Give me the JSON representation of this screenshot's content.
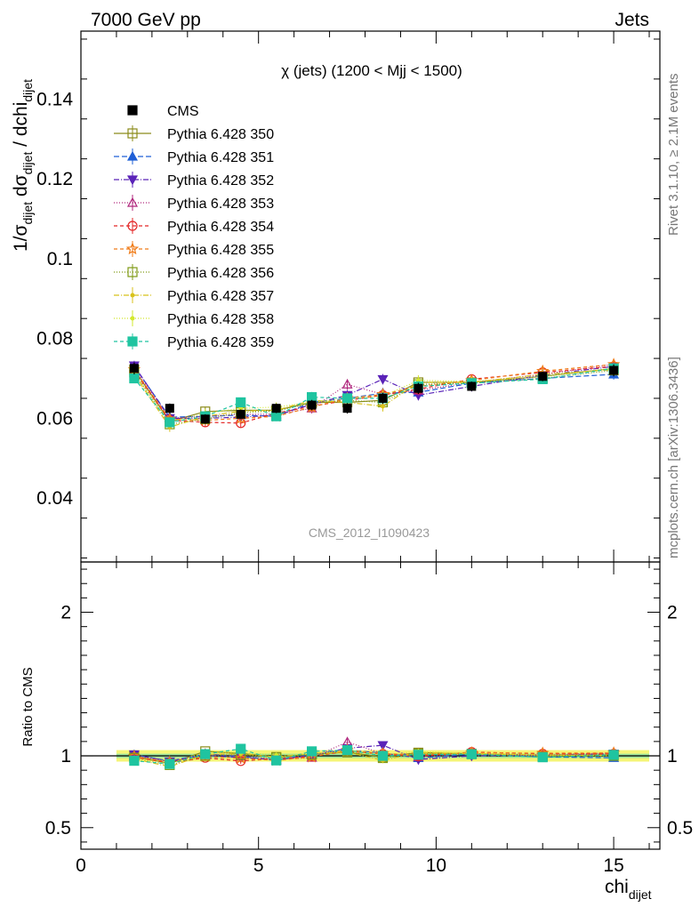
{
  "header": {
    "left": "7000 GeV pp",
    "right": "Jets"
  },
  "side": {
    "rivet": "Rivet 3.1.10, ≥ 2.1M events",
    "mcplots": "mcplots.cern.ch [arXiv:1306.3436]"
  },
  "colors": {
    "data": "#000000",
    "band_outer": "#f5f576",
    "band_inner": "#9ee69e",
    "axis": "#000000",
    "watermark": "#999999",
    "side_text": "#777777"
  },
  "chart_data": [
    {
      "type": "line",
      "panel": "main",
      "title": "χ (jets) (1200 < Mjj < 1500)",
      "watermark": "CMS_2012_I1090423",
      "ylabel": {
        "prefix": "1/σ",
        "sub1": "dijet",
        "mid": " dσ",
        "sub2": "dijet",
        "suffix": " / dchi",
        "sub3": "dijet"
      },
      "xlim": [
        0,
        16.3
      ],
      "ylim": [
        0.024,
        0.157
      ],
      "yticks": [
        "0.04",
        "0.06",
        "0.08",
        "0.1",
        "0.12",
        "0.14"
      ],
      "ytick_values": [
        0.04,
        0.06,
        0.08,
        0.1,
        0.12,
        0.14
      ],
      "x": [
        1.5,
        2.5,
        3.5,
        4.5,
        5.5,
        6.5,
        7.5,
        8.5,
        9.5,
        11,
        13,
        15
      ],
      "data": {
        "name": "CMS",
        "values": [
          0.0725,
          0.0625,
          0.0598,
          0.061,
          0.0625,
          0.0633,
          0.0625,
          0.065,
          0.0675,
          0.068,
          0.0705,
          0.072
        ],
        "errors": [
          0.0015,
          0.0012,
          0.0012,
          0.0012,
          0.0012,
          0.0013,
          0.0013,
          0.0014,
          0.0014,
          0.0012,
          0.0012,
          0.0015
        ]
      },
      "series": [
        {
          "name": "Pythia 6.428 350",
          "color": "#8b8b1a",
          "dash": "",
          "marker": "square-open",
          "values": [
            0.0722,
            0.0592,
            0.0617,
            0.062,
            0.062,
            0.064,
            0.064,
            0.0645,
            0.069,
            0.069,
            0.0705,
            0.0725
          ],
          "errors": [
            0.0012,
            0.0012,
            0.0012,
            0.0012,
            0.0012,
            0.0013,
            0.0013,
            0.0013,
            0.0013,
            0.0012,
            0.0012,
            0.0013
          ]
        },
        {
          "name": "Pythia 6.428 351",
          "color": "#1f5fd6",
          "dash": "6,3",
          "marker": "triangle-up",
          "values": [
            0.073,
            0.0603,
            0.0605,
            0.0608,
            0.0605,
            0.064,
            0.065,
            0.0663,
            0.0665,
            0.0688,
            0.07,
            0.071
          ],
          "errors": [
            0.0012,
            0.0012,
            0.0012,
            0.0012,
            0.0012,
            0.0013,
            0.0013,
            0.0013,
            0.0013,
            0.0012,
            0.0012,
            0.0013
          ]
        },
        {
          "name": "Pythia 6.428 352",
          "color": "#5a23b8",
          "dash": "6,2,1,2",
          "marker": "triangle-down",
          "values": [
            0.0732,
            0.06,
            0.06,
            0.0603,
            0.0608,
            0.0635,
            0.0658,
            0.0698,
            0.0658,
            0.068,
            0.0708,
            0.073
          ],
          "errors": [
            0.0012,
            0.0012,
            0.0012,
            0.0012,
            0.0012,
            0.0013,
            0.0013,
            0.0013,
            0.0013,
            0.0012,
            0.0012,
            0.0013
          ]
        },
        {
          "name": "Pythia 6.428 353",
          "color": "#b0277d",
          "dash": "1,2",
          "marker": "triangle-open",
          "values": [
            0.0725,
            0.06,
            0.0605,
            0.061,
            0.061,
            0.0625,
            0.0685,
            0.066,
            0.067,
            0.069,
            0.071,
            0.0735
          ],
          "errors": [
            0.0012,
            0.0012,
            0.0012,
            0.0012,
            0.0012,
            0.0013,
            0.0013,
            0.0013,
            0.0013,
            0.0012,
            0.0012,
            0.0013
          ]
        },
        {
          "name": "Pythia 6.428 354",
          "color": "#e32626",
          "dash": "4,3",
          "marker": "circle-open",
          "values": [
            0.0718,
            0.0595,
            0.059,
            0.0588,
            0.0613,
            0.063,
            0.0645,
            0.0658,
            0.0673,
            0.0698,
            0.0715,
            0.073
          ],
          "errors": [
            0.0012,
            0.0012,
            0.0012,
            0.0012,
            0.0012,
            0.0013,
            0.0013,
            0.0013,
            0.0013,
            0.0012,
            0.0012,
            0.0013
          ]
        },
        {
          "name": "Pythia 6.428 355",
          "color": "#f07c19",
          "dash": "4,3",
          "marker": "star-open",
          "values": [
            0.0722,
            0.0598,
            0.0595,
            0.06,
            0.0605,
            0.0628,
            0.065,
            0.066,
            0.068,
            0.0695,
            0.0718,
            0.0735
          ],
          "errors": [
            0.0012,
            0.0012,
            0.0012,
            0.0012,
            0.0012,
            0.0013,
            0.0013,
            0.0013,
            0.0013,
            0.0012,
            0.0012,
            0.0013
          ]
        },
        {
          "name": "Pythia 6.428 356",
          "color": "#7f9a14",
          "dash": "1,2",
          "marker": "square-open",
          "values": [
            0.0715,
            0.0585,
            0.0598,
            0.0615,
            0.0618,
            0.0638,
            0.0645,
            0.064,
            0.0685,
            0.0688,
            0.07,
            0.072
          ],
          "errors": [
            0.0012,
            0.0012,
            0.0012,
            0.0012,
            0.0012,
            0.0013,
            0.0013,
            0.0013,
            0.0013,
            0.0012,
            0.0012,
            0.0013
          ]
        },
        {
          "name": "Pythia 6.428 357",
          "color": "#d8c21b",
          "dash": "6,2,1,2",
          "marker": "small-dot",
          "values": [
            0.071,
            0.0578,
            0.0605,
            0.0618,
            0.062,
            0.0645,
            0.064,
            0.063,
            0.069,
            0.069,
            0.071,
            0.0722
          ],
          "errors": [
            0.0012,
            0.0012,
            0.0012,
            0.0012,
            0.0012,
            0.0013,
            0.0013,
            0.0013,
            0.0013,
            0.0012,
            0.0012,
            0.0013
          ]
        },
        {
          "name": "Pythia 6.428 358",
          "color": "#d2e82c",
          "dash": "1,2",
          "marker": "small-dot",
          "values": [
            0.0712,
            0.059,
            0.0612,
            0.0625,
            0.0628,
            0.064,
            0.065,
            0.0655,
            0.0695,
            0.0692,
            0.0705,
            0.0725
          ],
          "errors": [
            0.0012,
            0.0012,
            0.0012,
            0.0012,
            0.0012,
            0.0013,
            0.0013,
            0.0013,
            0.0013,
            0.0012,
            0.0012,
            0.0013
          ]
        },
        {
          "name": "Pythia 6.428 359",
          "color": "#1fc4a0",
          "dash": "4,3",
          "marker": "square-filled",
          "values": [
            0.07,
            0.059,
            0.0605,
            0.064,
            0.0605,
            0.0653,
            0.065,
            0.065,
            0.068,
            0.0688,
            0.0698,
            0.0725
          ],
          "errors": [
            0.0012,
            0.0012,
            0.0012,
            0.0012,
            0.0012,
            0.0013,
            0.0013,
            0.0013,
            0.0013,
            0.0012,
            0.0012,
            0.0013
          ]
        }
      ]
    },
    {
      "type": "line",
      "panel": "ratio",
      "ylabel": "Ratio to CMS",
      "xlabel": "chi",
      "xlabel_sub": "dijet",
      "xlim": [
        0,
        16.3
      ],
      "ylim": [
        0.35,
        2.35
      ],
      "yticks": [
        "0.5",
        "1",
        "2"
      ],
      "ytick_values": [
        0.5,
        1,
        2
      ],
      "xticks": [
        "0",
        "5",
        "10",
        "15"
      ],
      "xtick_values": [
        0,
        5,
        10,
        15
      ],
      "band": {
        "xmin": 1,
        "xmax": 16,
        "outer": [
          0.96,
          1.04
        ],
        "inner": [
          0.985,
          1.015
        ]
      },
      "reference": 1
    }
  ]
}
